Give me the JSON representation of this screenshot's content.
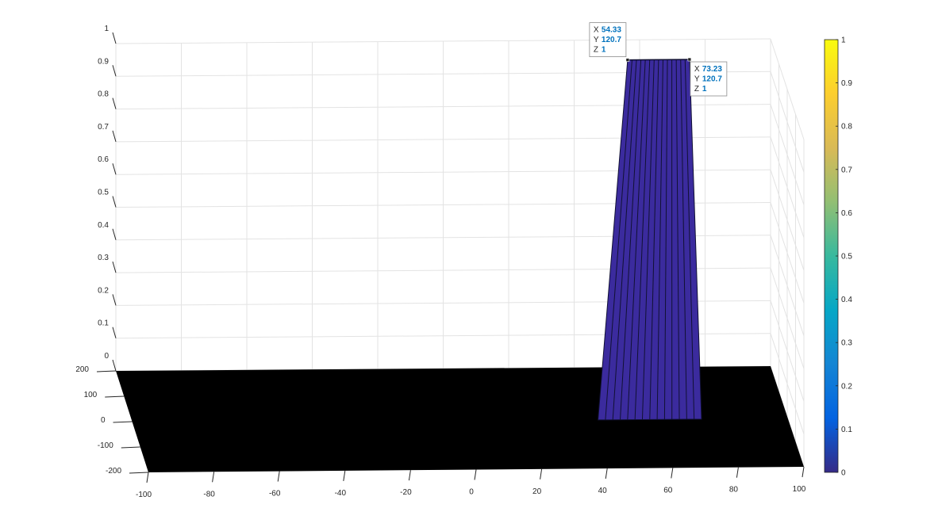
{
  "chart_data": {
    "type": "surface",
    "title": "",
    "xlabel": "",
    "ylabel": "",
    "zlabel": "",
    "xlim": [
      -100,
      100
    ],
    "ylim": [
      -200,
      200
    ],
    "zlim": [
      0,
      1
    ],
    "x_ticks": [
      "-100",
      "-80",
      "-60",
      "-40",
      "-20",
      "0",
      "20",
      "40",
      "60",
      "80",
      "100"
    ],
    "y_ticks": [
      "-200",
      "-100",
      "0",
      "100",
      "200"
    ],
    "z_ticks": [
      "0",
      "0.1",
      "0.2",
      "0.3",
      "0.4",
      "0.5",
      "0.6",
      "0.7",
      "0.8",
      "0.9",
      "1"
    ],
    "grid": true,
    "surface": {
      "base_z": 0,
      "block": {
        "x_range": [
          54.33,
          73.23
        ],
        "z": 1,
        "y_peak": 120.7
      }
    },
    "colormap": "parula",
    "colorbar": {
      "range": [
        0,
        1
      ],
      "ticks": [
        "0",
        "0.1",
        "0.2",
        "0.3",
        "0.4",
        "0.5",
        "0.6",
        "0.7",
        "0.8",
        "0.9",
        "1"
      ],
      "colors": [
        "#352a87",
        "#0363e1",
        "#1485d4",
        "#06a7c6",
        "#38b99e",
        "#92bf73",
        "#d9ba56",
        "#fcce2e",
        "#f9fb0e"
      ]
    },
    "colors": {
      "surface_base": "#000000",
      "block_fill": "#3b2b9e",
      "block_edge": "#111133",
      "grid": "#e3e3e3",
      "axis": "#262626"
    },
    "datatips": [
      {
        "x_label": "X",
        "x_value": "54.33",
        "y_label": "Y",
        "y_value": "120.7",
        "z_label": "Z",
        "z_value": "1"
      },
      {
        "x_label": "X",
        "x_value": "73.23",
        "y_label": "Y",
        "y_value": "120.7",
        "z_label": "Z",
        "z_value": "1"
      }
    ]
  }
}
